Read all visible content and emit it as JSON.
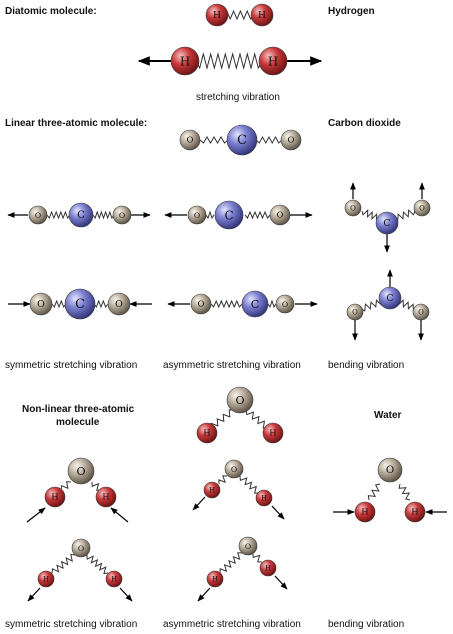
{
  "headings": {
    "diatomic": "Diatomic molecule:",
    "hydrogen": "Hydrogen",
    "linear": "Linear three-atomic molecule:",
    "co2": "Carbon dioxide",
    "nonlinear_1": "Non-linear three-atomic",
    "nonlinear_2": "molecule",
    "water": "Water"
  },
  "captions": {
    "stretching": "stretching vibration",
    "co2_sym": "symmetric stretching vibration",
    "co2_asym": "asymmetric stretching vibration",
    "co2_bend": "bending vibration",
    "h2o_sym": "symmetric stretching vibration",
    "h2o_asym": "asymmetric stretching vibration",
    "h2o_bend": "bending vibration"
  },
  "atoms": {
    "hydrogen": "H",
    "carbon": "C",
    "oxygen": "O"
  },
  "colors": {
    "hydrogen": "#c0393b",
    "carbon": "#7b7fd0",
    "oxygen": "#b9ad9c",
    "bond": "#333333",
    "arrow": "#000000"
  }
}
